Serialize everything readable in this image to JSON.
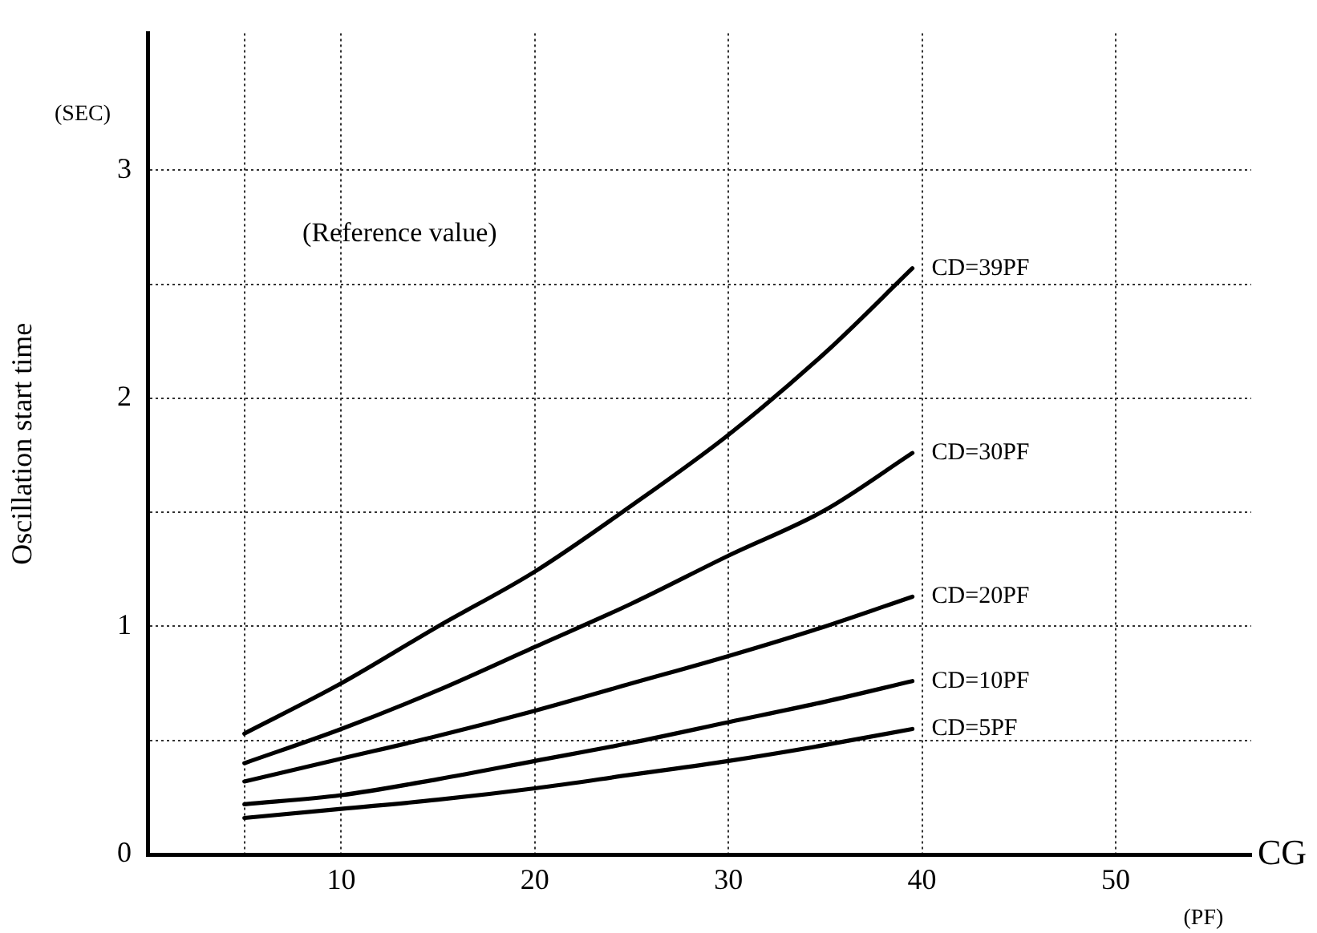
{
  "chart_data": {
    "type": "line",
    "ylabel": "Oscillation start time",
    "xlabel": "CG",
    "annotations": [
      "(SEC)",
      "(Reference value)",
      "(PF)"
    ],
    "xlim": [
      0,
      57
    ],
    "ylim": [
      0,
      3.6
    ],
    "xticks": [
      {
        "value": 5,
        "label": null
      },
      10,
      20,
      30,
      40,
      50
    ],
    "yticks": [
      0,
      {
        "value": 0.5,
        "label": null
      },
      1,
      {
        "value": 1.5,
        "label": null
      },
      2,
      {
        "value": 2.5,
        "label": null
      },
      3
    ],
    "grid": true,
    "legend": false,
    "marker": "none",
    "line_style": "solid",
    "x": [
      5,
      10,
      15,
      20,
      25,
      30,
      35,
      39.5
    ],
    "series": [
      {
        "name": "CD=39PF",
        "color": "#000000",
        "values": [
          0.53,
          0.75,
          1.0,
          1.24,
          1.53,
          1.84,
          2.2,
          2.57
        ]
      },
      {
        "name": "CD=30PF",
        "color": "#000000",
        "values": [
          0.4,
          0.55,
          0.72,
          0.91,
          1.1,
          1.31,
          1.51,
          1.76
        ]
      },
      {
        "name": "CD=20PF",
        "color": "#000000",
        "values": [
          0.32,
          0.42,
          0.52,
          0.63,
          0.75,
          0.87,
          1.0,
          1.13
        ]
      },
      {
        "name": "CD=10PF",
        "color": "#000000",
        "values": [
          0.22,
          0.26,
          0.33,
          0.41,
          0.49,
          0.58,
          0.67,
          0.76
        ]
      },
      {
        "name": "CD=5PF",
        "color": "#000000",
        "values": [
          0.16,
          0.2,
          0.24,
          0.29,
          0.35,
          0.41,
          0.48,
          0.55
        ]
      }
    ]
  }
}
